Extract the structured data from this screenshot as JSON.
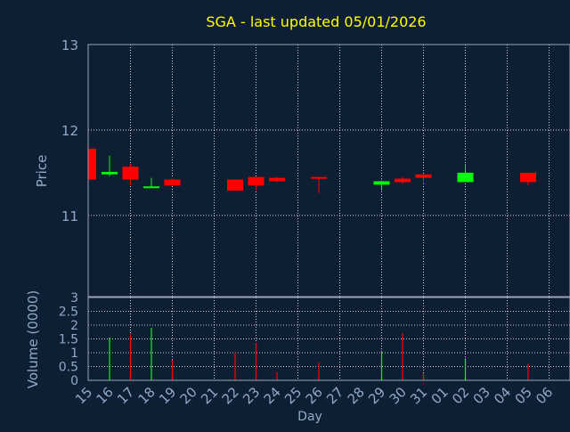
{
  "chart_data": {
    "type": "candlestick",
    "title": "SGA - last updated 05/01/2026",
    "xlabel": "Day",
    "colors": {
      "background": "#0f1f33",
      "plot_border": "#9aa6b8",
      "grid": "#ffffff",
      "title": "#ffff00",
      "axis_text": "#8fa9c9",
      "up": "#00ff00",
      "down": "#ff0000"
    },
    "days": [
      "15",
      "16",
      "17",
      "18",
      "19",
      "20",
      "21",
      "22",
      "23",
      "24",
      "25",
      "26",
      "27",
      "28",
      "29",
      "30",
      "31",
      "01",
      "02",
      "03",
      "04",
      "05",
      "06"
    ],
    "price_panel": {
      "ylabel": "Price",
      "ylim": [
        10.05,
        13
      ],
      "yticks": [
        11,
        12,
        13
      ],
      "candles": [
        {
          "day": "15",
          "open": 11.78,
          "close": 11.42,
          "high": 11.78,
          "low": 11.42
        },
        {
          "day": "16",
          "open": 11.48,
          "close": 11.51,
          "high": 11.7,
          "low": 11.46
        },
        {
          "day": "17",
          "open": 11.57,
          "close": 11.42,
          "high": 11.6,
          "low": 11.35
        },
        {
          "day": "18",
          "open": 11.32,
          "close": 11.34,
          "high": 11.44,
          "low": 11.32
        },
        {
          "day": "19",
          "open": 11.42,
          "close": 11.35,
          "high": 11.44,
          "low": 11.35
        },
        {
          "day": "22",
          "open": 11.42,
          "close": 11.29,
          "high": 11.42,
          "low": 11.29
        },
        {
          "day": "23",
          "open": 11.45,
          "close": 11.35,
          "high": 11.45,
          "low": 11.29
        },
        {
          "day": "24",
          "open": 11.44,
          "close": 11.4,
          "high": 11.45,
          "low": 11.39
        },
        {
          "day": "26",
          "open": 11.45,
          "close": 11.44,
          "high": 11.45,
          "low": 11.26
        },
        {
          "day": "29",
          "open": 11.36,
          "close": 11.4,
          "high": 11.41,
          "low": 11.29
        },
        {
          "day": "30",
          "open": 11.43,
          "close": 11.39,
          "high": 11.45,
          "low": 11.37
        },
        {
          "day": "31",
          "open": 11.48,
          "close": 11.44,
          "high": 11.48,
          "low": 11.37
        },
        {
          "day": "02",
          "open": 11.39,
          "close": 11.5,
          "high": 11.6,
          "low": 11.39
        },
        {
          "day": "05",
          "open": 11.5,
          "close": 11.39,
          "high": 11.5,
          "low": 11.35
        }
      ]
    },
    "volume_panel": {
      "ylabel": "Volume (0000)",
      "ylim": [
        0,
        3
      ],
      "yticks": [
        "0",
        "0.5",
        "1",
        "1.5",
        "2",
        "2.5",
        "3"
      ],
      "bars": [
        {
          "day": "16",
          "value": 1.55,
          "direction": "up"
        },
        {
          "day": "17",
          "value": 1.7,
          "direction": "down"
        },
        {
          "day": "18",
          "value": 1.9,
          "direction": "up"
        },
        {
          "day": "19",
          "value": 0.75,
          "direction": "down"
        },
        {
          "day": "22",
          "value": 1.0,
          "direction": "down"
        },
        {
          "day": "23",
          "value": 1.35,
          "direction": "down"
        },
        {
          "day": "24",
          "value": 0.3,
          "direction": "down"
        },
        {
          "day": "26",
          "value": 0.65,
          "direction": "down"
        },
        {
          "day": "29",
          "value": 1.05,
          "direction": "up"
        },
        {
          "day": "30",
          "value": 1.7,
          "direction": "down"
        },
        {
          "day": "31",
          "value": 0.25,
          "direction": "down"
        },
        {
          "day": "02",
          "value": 0.8,
          "direction": "up"
        },
        {
          "day": "05",
          "value": 0.6,
          "direction": "down"
        }
      ]
    }
  }
}
